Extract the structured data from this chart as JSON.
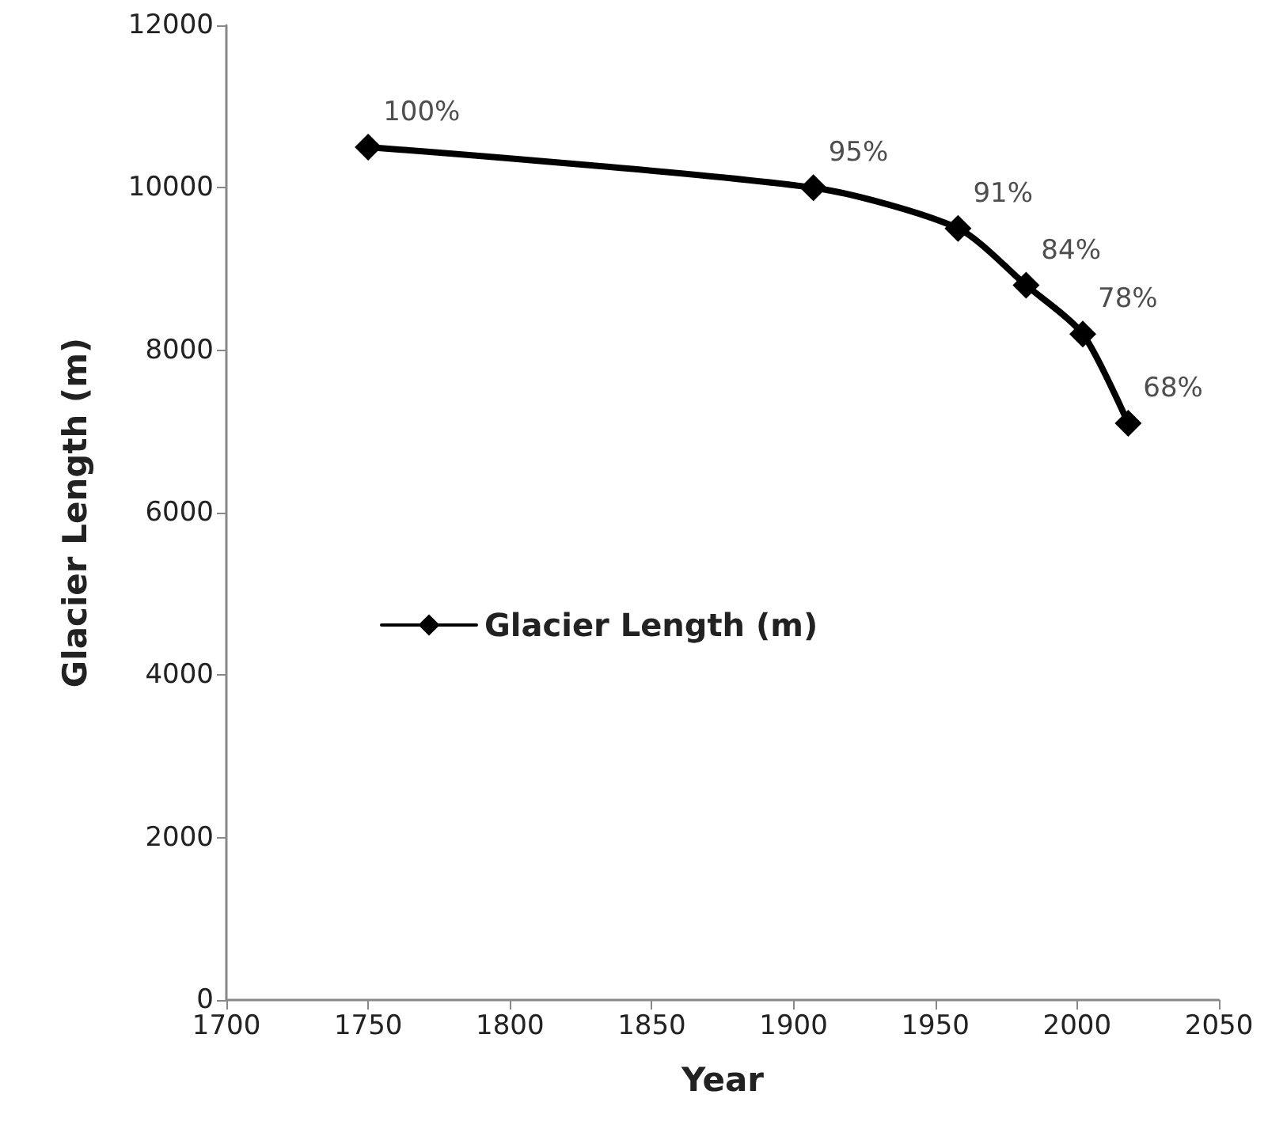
{
  "chart_data": {
    "type": "line",
    "xlabel": "Year",
    "ylabel": "Glacier Length (m)",
    "x": [
      1750,
      1907,
      1958,
      1982,
      2002,
      2018
    ],
    "series": [
      {
        "name": "Glacier Length (m)",
        "color": "#000000",
        "values": [
          10500,
          10000,
          9500,
          8800,
          8200,
          7100
        ]
      }
    ],
    "annotations": [
      {
        "text": "100%",
        "x": 1750,
        "y": 10500
      },
      {
        "text": "95%",
        "x": 1907,
        "y": 10000
      },
      {
        "text": "91%",
        "x": 1958,
        "y": 9500
      },
      {
        "text": "84%",
        "x": 1982,
        "y": 8800
      },
      {
        "text": "78%",
        "x": 2002,
        "y": 8200
      },
      {
        "text": "68%",
        "x": 2018,
        "y": 7100
      }
    ],
    "xlim": [
      1700,
      2050
    ],
    "xticks": [
      1700,
      1750,
      1800,
      1850,
      1900,
      1950,
      2000,
      2050
    ],
    "ylim": [
      0,
      12000
    ],
    "yticks": [
      0,
      2000,
      4000,
      6000,
      8000,
      10000,
      12000
    ],
    "grid": false,
    "legend": "left",
    "marker": "diamond",
    "line_style": "solid"
  }
}
